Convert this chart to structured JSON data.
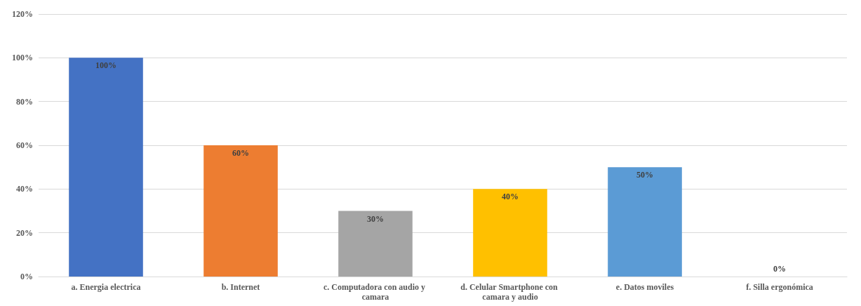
{
  "chart_data": {
    "type": "bar",
    "categories": [
      "a. Energia electrica",
      "b. Internet",
      "c. Computadora con audio y camara",
      "d. Celular Smartphone con camara y audio",
      "e. Datos moviles",
      "f. Silla ergonómica"
    ],
    "values": [
      100,
      60,
      30,
      40,
      50,
      0
    ],
    "colors": [
      "#4472c4",
      "#ed7d31",
      "#a5a5a5",
      "#ffc000",
      "#5b9bd5",
      "#70ad47"
    ],
    "ylim": [
      0,
      120
    ],
    "yticks": [
      {
        "value": 0,
        "label": "0%"
      },
      {
        "value": 20,
        "label": "20%"
      },
      {
        "value": 40,
        "label": "40%"
      },
      {
        "value": 60,
        "label": "60%"
      },
      {
        "value": 80,
        "label": "80%"
      },
      {
        "value": 100,
        "label": "100%"
      },
      {
        "value": 120,
        "label": "120%"
      }
    ],
    "value_labels": [
      "100%",
      "60%",
      "30%",
      "40%",
      "50%",
      "0%"
    ],
    "grid": "y"
  }
}
